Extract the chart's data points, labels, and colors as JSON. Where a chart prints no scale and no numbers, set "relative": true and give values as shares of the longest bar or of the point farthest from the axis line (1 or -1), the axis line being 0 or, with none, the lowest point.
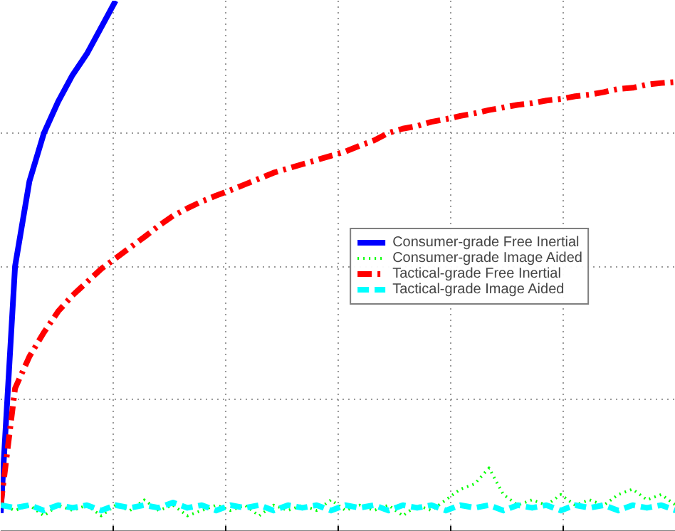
{
  "chart_data": {
    "type": "line",
    "relative": true,
    "grid": true,
    "legend": "right",
    "categories": [
      null,
      null,
      null,
      null,
      null,
      null,
      null,
      null,
      null,
      null,
      null,
      null,
      null,
      null,
      null,
      null,
      null,
      null,
      null,
      null,
      null,
      null,
      null,
      null,
      null,
      null,
      null,
      null,
      null,
      null,
      null,
      null,
      null,
      null,
      null,
      null,
      null,
      null,
      null,
      null,
      null,
      null,
      null,
      null,
      null,
      null,
      null,
      null
    ],
    "series": [
      {
        "name": "Consumer-grade Free Inertial",
        "color": "#0000ff",
        "line_style": "solid",
        "values": [
          0.035,
          0.5,
          0.66,
          0.75,
          0.81,
          0.86,
          0.9,
          0.95,
          1.0,
          null,
          null,
          null,
          null,
          null,
          null,
          null,
          null,
          null,
          null,
          null,
          null,
          null,
          null,
          null,
          null,
          null,
          null,
          null,
          null,
          null,
          null,
          null,
          null,
          null,
          null,
          null,
          null,
          null,
          null,
          null,
          null,
          null,
          null,
          null,
          null,
          null,
          null,
          null
        ]
      },
      {
        "name": "Consumer-grade Image Aided",
        "color": "#00ff00",
        "line_style": "dotted",
        "values": [
          0.05,
          0.04,
          0.05,
          0.03,
          0.05,
          0.04,
          0.05,
          0.03,
          0.05,
          0.04,
          0.06,
          0.04,
          0.05,
          0.03,
          0.04,
          0.05,
          0.04,
          0.05,
          0.03,
          0.05,
          0.04,
          0.05,
          0.04,
          0.06,
          0.04,
          0.05,
          0.04,
          0.05,
          0.03,
          0.05,
          0.04,
          0.06,
          0.08,
          0.09,
          0.12,
          0.07,
          0.05,
          0.06,
          0.05,
          0.07,
          0.05,
          0.06,
          0.05,
          0.07,
          0.08,
          0.06,
          0.07,
          0.05
        ]
      },
      {
        "name": "Tactical-grade Free Inertial",
        "color": "#ff0000",
        "line_style": "dashdot",
        "values": [
          0.05,
          0.27,
          0.33,
          0.375,
          0.415,
          0.445,
          0.47,
          0.495,
          0.515,
          0.535,
          0.555,
          0.576,
          0.595,
          0.609,
          0.622,
          0.633,
          0.643,
          0.654,
          0.665,
          0.676,
          0.684,
          0.692,
          0.7,
          0.708,
          0.716,
          0.727,
          0.737,
          0.751,
          0.759,
          0.764,
          0.772,
          0.777,
          0.783,
          0.788,
          0.794,
          0.799,
          0.804,
          0.807,
          0.812,
          0.815,
          0.82,
          0.823,
          0.828,
          0.834,
          0.836,
          0.842,
          0.845,
          0.847
        ]
      },
      {
        "name": "Tactical-grade Image Aided",
        "color": "#00ffff",
        "line_style": "dashed",
        "values": [
          0.05,
          0.045,
          0.05,
          0.04,
          0.05,
          0.045,
          0.05,
          0.04,
          0.05,
          0.045,
          0.05,
          0.045,
          0.055,
          0.045,
          0.05,
          0.04,
          0.05,
          0.045,
          0.05,
          0.04,
          0.05,
          0.045,
          0.05,
          0.04,
          0.05,
          0.045,
          0.05,
          0.04,
          0.05,
          0.045,
          0.05,
          0.04,
          0.05,
          0.045,
          0.05,
          0.04,
          0.05,
          0.045,
          0.05,
          0.04,
          0.05,
          0.045,
          0.05,
          0.04,
          0.05,
          0.045,
          0.05,
          0.04
        ]
      }
    ]
  }
}
